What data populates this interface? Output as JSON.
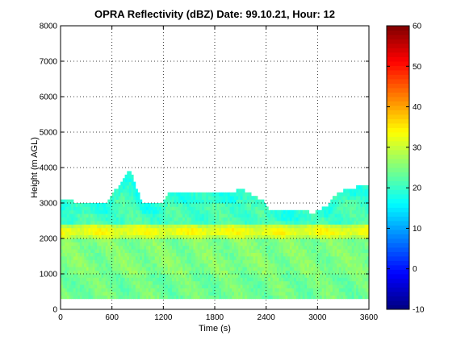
{
  "chart_data": {
    "type": "heatmap",
    "title": "OPRA Reflectivity (dBZ)  Date: 99.10.21, Hour: 12",
    "xlabel": "Time (s)",
    "ylabel": "Height (m AGL)",
    "xlim": [
      0,
      3600
    ],
    "ylim": [
      0,
      8000
    ],
    "x_ticks": [
      "0",
      "600",
      "1200",
      "1800",
      "2400",
      "3000",
      "3600"
    ],
    "y_ticks": [
      "0",
      "1000",
      "2000",
      "3000",
      "4000",
      "5000",
      "6000",
      "7000",
      "8000"
    ],
    "grid": true,
    "colormap": "jet",
    "clim": [
      -10,
      60
    ],
    "colorbar_ticks": [
      "-10",
      "0",
      "10",
      "20",
      "30",
      "40",
      "50",
      "60"
    ],
    "cloud_base_m": 300,
    "cloud_top_profile": {
      "time_s": [
        0,
        150,
        250,
        400,
        550,
        650,
        750,
        800,
        850,
        950,
        1050,
        1200,
        1250,
        1400,
        1600,
        1800,
        2000,
        2100,
        2350,
        2450,
        2600,
        2800,
        2950,
        3100,
        3200,
        3350,
        3450,
        3600
      ],
      "top_m": [
        3100,
        3050,
        2950,
        3000,
        3050,
        3400,
        3700,
        3900,
        3700,
        3000,
        2950,
        3000,
        3250,
        3300,
        3300,
        3300,
        3300,
        3400,
        3100,
        2750,
        2800,
        2850,
        2700,
        2900,
        3200,
        3400,
        3450,
        3550
      ]
    },
    "bright_band": {
      "center_m": 2200,
      "depth_m": 350,
      "peak_dbz": 34
    },
    "typical_dbz_below_band": 25,
    "typical_dbz_above_band": 20
  }
}
